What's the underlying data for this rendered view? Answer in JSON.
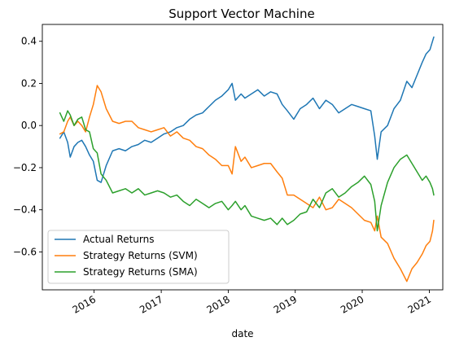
{
  "chart_data": {
    "type": "line",
    "title": "Support Vector Machine",
    "xlabel": "date",
    "ylabel": "",
    "xlim": [
      "2015-03-25",
      "2021-03-15"
    ],
    "ylim": [
      -0.78,
      0.48
    ],
    "x_ticks": [
      {
        "label": "2016",
        "date": "2016-01-01"
      },
      {
        "label": "2017",
        "date": "2017-01-01"
      },
      {
        "label": "2018",
        "date": "2018-01-01"
      },
      {
        "label": "2019",
        "date": "2019-01-01"
      },
      {
        "label": "2020",
        "date": "2020-01-01"
      },
      {
        "label": "2021",
        "date": "2021-01-01"
      }
    ],
    "y_ticks": [
      {
        "label": "0.4",
        "value": 0.4
      },
      {
        "label": "0.2",
        "value": 0.2
      },
      {
        "label": "0.0",
        "value": 0.0
      },
      {
        "label": "−0.2",
        "value": -0.2
      },
      {
        "label": "−0.4",
        "value": -0.4
      },
      {
        "label": "−0.6",
        "value": -0.6
      }
    ],
    "grid": false,
    "legend_position": "lower-left",
    "series": [
      {
        "name": "Actual Returns",
        "color": "#1f77b4",
        "points": [
          [
            "2015-06-29",
            -0.06
          ],
          [
            "2015-07-20",
            -0.03
          ],
          [
            "2015-08-10",
            -0.08
          ],
          [
            "2015-08-24",
            -0.15
          ],
          [
            "2015-09-14",
            -0.1
          ],
          [
            "2015-10-05",
            -0.08
          ],
          [
            "2015-10-26",
            -0.07
          ],
          [
            "2015-11-16",
            -0.1
          ],
          [
            "2015-12-07",
            -0.14
          ],
          [
            "2015-12-28",
            -0.17
          ],
          [
            "2016-01-18",
            -0.26
          ],
          [
            "2016-02-08",
            -0.27
          ],
          [
            "2016-03-07",
            -0.19
          ],
          [
            "2016-04-11",
            -0.12
          ],
          [
            "2016-05-16",
            -0.11
          ],
          [
            "2016-06-20",
            -0.12
          ],
          [
            "2016-07-25",
            -0.1
          ],
          [
            "2016-08-29",
            -0.09
          ],
          [
            "2016-10-03",
            -0.07
          ],
          [
            "2016-11-07",
            -0.08
          ],
          [
            "2016-12-12",
            -0.06
          ],
          [
            "2017-01-16",
            -0.04
          ],
          [
            "2017-02-20",
            -0.03
          ],
          [
            "2017-03-27",
            -0.01
          ],
          [
            "2017-05-01",
            0.0
          ],
          [
            "2017-06-05",
            0.03
          ],
          [
            "2017-07-10",
            0.05
          ],
          [
            "2017-08-14",
            0.06
          ],
          [
            "2017-09-18",
            0.09
          ],
          [
            "2017-10-23",
            0.12
          ],
          [
            "2017-11-27",
            0.14
          ],
          [
            "2018-01-01",
            0.17
          ],
          [
            "2018-01-22",
            0.2
          ],
          [
            "2018-02-09",
            0.12
          ],
          [
            "2018-03-12",
            0.15
          ],
          [
            "2018-04-02",
            0.13
          ],
          [
            "2018-05-07",
            0.15
          ],
          [
            "2018-06-11",
            0.17
          ],
          [
            "2018-07-16",
            0.14
          ],
          [
            "2018-08-20",
            0.16
          ],
          [
            "2018-09-24",
            0.15
          ],
          [
            "2018-10-22",
            0.1
          ],
          [
            "2018-11-19",
            0.07
          ],
          [
            "2018-12-24",
            0.03
          ],
          [
            "2019-01-28",
            0.08
          ],
          [
            "2019-03-04",
            0.1
          ],
          [
            "2019-04-08",
            0.13
          ],
          [
            "2019-05-13",
            0.08
          ],
          [
            "2019-06-17",
            0.12
          ],
          [
            "2019-07-22",
            0.1
          ],
          [
            "2019-08-26",
            0.06
          ],
          [
            "2019-09-30",
            0.08
          ],
          [
            "2019-11-04",
            0.1
          ],
          [
            "2019-12-09",
            0.09
          ],
          [
            "2020-01-13",
            0.08
          ],
          [
            "2020-02-17",
            0.07
          ],
          [
            "2020-03-09",
            -0.05
          ],
          [
            "2020-03-23",
            -0.16
          ],
          [
            "2020-04-13",
            -0.03
          ],
          [
            "2020-05-18",
            0.0
          ],
          [
            "2020-06-22",
            0.08
          ],
          [
            "2020-07-27",
            0.12
          ],
          [
            "2020-08-31",
            0.21
          ],
          [
            "2020-09-28",
            0.18
          ],
          [
            "2020-10-26",
            0.24
          ],
          [
            "2020-11-23",
            0.3
          ],
          [
            "2020-12-14",
            0.34
          ],
          [
            "2021-01-04",
            0.36
          ],
          [
            "2021-01-18",
            0.4
          ],
          [
            "2021-01-25",
            0.42
          ]
        ]
      },
      {
        "name": "Strategy Returns (SVM)",
        "color": "#ff7f0e",
        "points": [
          [
            "2015-06-29",
            -0.04
          ],
          [
            "2015-07-20",
            -0.03
          ],
          [
            "2015-08-10",
            0.02
          ],
          [
            "2015-08-24",
            0.04
          ],
          [
            "2015-09-14",
            0.0
          ],
          [
            "2015-10-05",
            0.02
          ],
          [
            "2015-10-26",
            0.0
          ],
          [
            "2015-11-16",
            -0.03
          ],
          [
            "2015-12-07",
            0.04
          ],
          [
            "2015-12-28",
            0.1
          ],
          [
            "2016-01-18",
            0.19
          ],
          [
            "2016-02-08",
            0.16
          ],
          [
            "2016-03-07",
            0.08
          ],
          [
            "2016-04-11",
            0.02
          ],
          [
            "2016-05-16",
            0.01
          ],
          [
            "2016-06-20",
            0.02
          ],
          [
            "2016-07-25",
            0.02
          ],
          [
            "2016-08-29",
            -0.01
          ],
          [
            "2016-10-03",
            -0.02
          ],
          [
            "2016-11-07",
            -0.03
          ],
          [
            "2016-12-12",
            -0.02
          ],
          [
            "2017-01-16",
            -0.01
          ],
          [
            "2017-02-20",
            -0.05
          ],
          [
            "2017-03-27",
            -0.03
          ],
          [
            "2017-05-01",
            -0.06
          ],
          [
            "2017-06-05",
            -0.07
          ],
          [
            "2017-07-10",
            -0.1
          ],
          [
            "2017-08-14",
            -0.11
          ],
          [
            "2017-09-18",
            -0.14
          ],
          [
            "2017-10-23",
            -0.16
          ],
          [
            "2017-11-27",
            -0.19
          ],
          [
            "2018-01-01",
            -0.19
          ],
          [
            "2018-01-22",
            -0.23
          ],
          [
            "2018-02-09",
            -0.1
          ],
          [
            "2018-03-12",
            -0.17
          ],
          [
            "2018-04-02",
            -0.15
          ],
          [
            "2018-05-07",
            -0.2
          ],
          [
            "2018-06-11",
            -0.19
          ],
          [
            "2018-07-16",
            -0.18
          ],
          [
            "2018-08-20",
            -0.18
          ],
          [
            "2018-09-24",
            -0.22
          ],
          [
            "2018-10-22",
            -0.25
          ],
          [
            "2018-11-19",
            -0.33
          ],
          [
            "2018-12-24",
            -0.33
          ],
          [
            "2019-01-28",
            -0.35
          ],
          [
            "2019-03-04",
            -0.37
          ],
          [
            "2019-04-08",
            -0.39
          ],
          [
            "2019-05-13",
            -0.34
          ],
          [
            "2019-06-17",
            -0.4
          ],
          [
            "2019-07-22",
            -0.39
          ],
          [
            "2019-08-26",
            -0.35
          ],
          [
            "2019-09-30",
            -0.37
          ],
          [
            "2019-11-04",
            -0.39
          ],
          [
            "2019-12-09",
            -0.42
          ],
          [
            "2020-01-13",
            -0.45
          ],
          [
            "2020-02-17",
            -0.46
          ],
          [
            "2020-03-09",
            -0.5
          ],
          [
            "2020-03-23",
            -0.43
          ],
          [
            "2020-04-13",
            -0.53
          ],
          [
            "2020-05-18",
            -0.56
          ],
          [
            "2020-06-22",
            -0.63
          ],
          [
            "2020-07-27",
            -0.68
          ],
          [
            "2020-08-31",
            -0.74
          ],
          [
            "2020-09-28",
            -0.68
          ],
          [
            "2020-10-26",
            -0.65
          ],
          [
            "2020-11-23",
            -0.61
          ],
          [
            "2020-12-14",
            -0.57
          ],
          [
            "2021-01-04",
            -0.55
          ],
          [
            "2021-01-18",
            -0.5
          ],
          [
            "2021-01-25",
            -0.45
          ]
        ]
      },
      {
        "name": "Strategy Returns (SMA)",
        "color": "#2ca02c",
        "points": [
          [
            "2015-06-29",
            0.06
          ],
          [
            "2015-07-20",
            0.02
          ],
          [
            "2015-08-10",
            0.07
          ],
          [
            "2015-08-24",
            0.05
          ],
          [
            "2015-09-14",
            0.0
          ],
          [
            "2015-10-05",
            0.03
          ],
          [
            "2015-10-26",
            0.04
          ],
          [
            "2015-11-16",
            -0.02
          ],
          [
            "2015-12-07",
            -0.03
          ],
          [
            "2015-12-28",
            -0.11
          ],
          [
            "2016-01-18",
            -0.13
          ],
          [
            "2016-02-08",
            -0.23
          ],
          [
            "2016-03-07",
            -0.26
          ],
          [
            "2016-04-11",
            -0.32
          ],
          [
            "2016-05-16",
            -0.31
          ],
          [
            "2016-06-20",
            -0.3
          ],
          [
            "2016-07-25",
            -0.32
          ],
          [
            "2016-08-29",
            -0.3
          ],
          [
            "2016-10-03",
            -0.33
          ],
          [
            "2016-11-07",
            -0.32
          ],
          [
            "2016-12-12",
            -0.31
          ],
          [
            "2017-01-16",
            -0.32
          ],
          [
            "2017-02-20",
            -0.34
          ],
          [
            "2017-03-27",
            -0.33
          ],
          [
            "2017-05-01",
            -0.36
          ],
          [
            "2017-06-05",
            -0.38
          ],
          [
            "2017-07-10",
            -0.35
          ],
          [
            "2017-08-14",
            -0.37
          ],
          [
            "2017-09-18",
            -0.39
          ],
          [
            "2017-10-23",
            -0.37
          ],
          [
            "2017-11-27",
            -0.36
          ],
          [
            "2018-01-01",
            -0.4
          ],
          [
            "2018-01-22",
            -0.38
          ],
          [
            "2018-02-09",
            -0.36
          ],
          [
            "2018-03-12",
            -0.4
          ],
          [
            "2018-04-02",
            -0.38
          ],
          [
            "2018-05-07",
            -0.43
          ],
          [
            "2018-06-11",
            -0.44
          ],
          [
            "2018-07-16",
            -0.45
          ],
          [
            "2018-08-20",
            -0.44
          ],
          [
            "2018-09-24",
            -0.47
          ],
          [
            "2018-10-22",
            -0.44
          ],
          [
            "2018-11-19",
            -0.47
          ],
          [
            "2018-12-24",
            -0.45
          ],
          [
            "2019-01-28",
            -0.42
          ],
          [
            "2019-03-04",
            -0.41
          ],
          [
            "2019-04-08",
            -0.35
          ],
          [
            "2019-05-13",
            -0.39
          ],
          [
            "2019-06-17",
            -0.32
          ],
          [
            "2019-07-22",
            -0.3
          ],
          [
            "2019-08-26",
            -0.34
          ],
          [
            "2019-09-30",
            -0.32
          ],
          [
            "2019-11-04",
            -0.29
          ],
          [
            "2019-12-09",
            -0.27
          ],
          [
            "2020-01-13",
            -0.24
          ],
          [
            "2020-02-17",
            -0.28
          ],
          [
            "2020-03-09",
            -0.36
          ],
          [
            "2020-03-23",
            -0.5
          ],
          [
            "2020-04-13",
            -0.38
          ],
          [
            "2020-05-18",
            -0.27
          ],
          [
            "2020-06-22",
            -0.2
          ],
          [
            "2020-07-27",
            -0.16
          ],
          [
            "2020-08-31",
            -0.14
          ],
          [
            "2020-09-28",
            -0.18
          ],
          [
            "2020-10-26",
            -0.22
          ],
          [
            "2020-11-23",
            -0.26
          ],
          [
            "2020-12-14",
            -0.24
          ],
          [
            "2021-01-04",
            -0.27
          ],
          [
            "2021-01-18",
            -0.3
          ],
          [
            "2021-01-25",
            -0.33
          ]
        ]
      }
    ]
  }
}
